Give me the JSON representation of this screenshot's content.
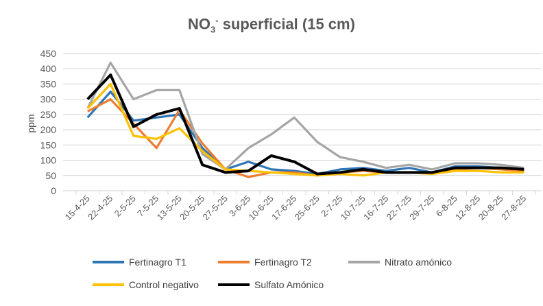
{
  "chart_data": {
    "type": "line",
    "title": {
      "main": "NO",
      "sub": "3",
      "sup": "-",
      "rest": " superficial (15 cm)"
    },
    "xlabel": "",
    "ylabel": "ppm",
    "ylim": [
      0,
      450
    ],
    "yticks": [
      0,
      50,
      100,
      150,
      200,
      250,
      300,
      350,
      400,
      450
    ],
    "grid": true,
    "legend_position": "bottom",
    "categories": [
      "15-4-25",
      "22-4-25",
      "2-5-25",
      "7-5-25",
      "13-5-25",
      "20-5-25",
      "27-5-25",
      "3-6-25",
      "10-6-25",
      "17-6-25",
      "25-6-25",
      "2-7-25",
      "10-7-25",
      "16-7-25",
      "22-7-25",
      "29-7-25",
      "6-8-25",
      "12-8-25",
      "20-8-25",
      "27-8-25"
    ],
    "series": [
      {
        "name": "Fertinagro T1",
        "color": "#2E75B6",
        "values": [
          240,
          325,
          230,
          240,
          250,
          140,
          70,
          95,
          70,
          65,
          55,
          70,
          75,
          65,
          75,
          60,
          80,
          80,
          75,
          70
        ]
      },
      {
        "name": "Fertinagro T2",
        "color": "#ED7D31",
        "values": [
          260,
          300,
          220,
          140,
          265,
          155,
          70,
          45,
          60,
          60,
          50,
          60,
          65,
          60,
          60,
          60,
          70,
          75,
          70,
          65
        ]
      },
      {
        "name": "Nitrato amónico",
        "color": "#A5A5A5",
        "values": [
          270,
          420,
          300,
          330,
          330,
          120,
          70,
          140,
          185,
          240,
          160,
          110,
          95,
          75,
          85,
          70,
          90,
          90,
          85,
          75
        ]
      },
      {
        "name": "Control negativo",
        "color": "#FFC000",
        "values": [
          270,
          350,
          180,
          170,
          205,
          130,
          70,
          65,
          60,
          55,
          50,
          55,
          50,
          60,
          60,
          55,
          65,
          65,
          60,
          60
        ]
      },
      {
        "name": "Sulfato Amónico",
        "color": "#000000",
        "values": [
          300,
          380,
          210,
          250,
          270,
          85,
          60,
          65,
          115,
          95,
          55,
          60,
          70,
          60,
          60,
          60,
          75,
          75,
          75,
          70
        ]
      }
    ]
  }
}
